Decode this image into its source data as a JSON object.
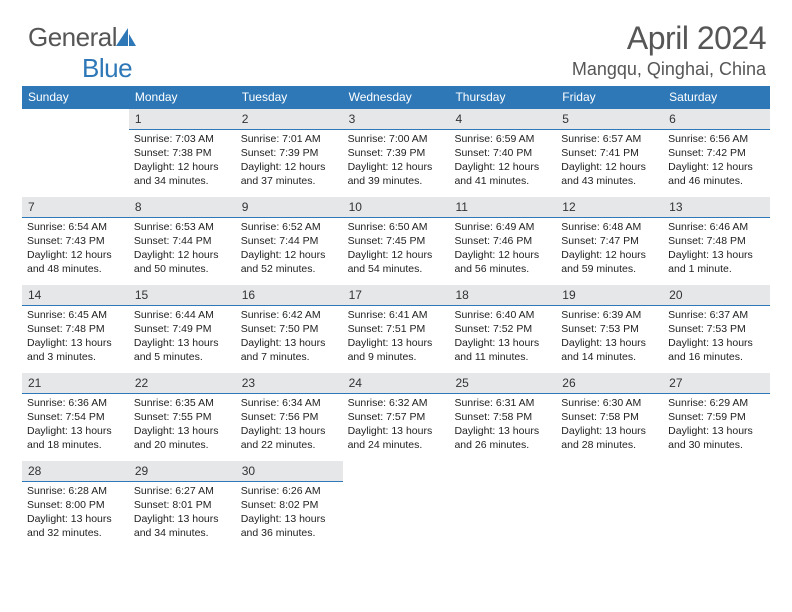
{
  "logo": {
    "text1": "General",
    "text2": "Blue"
  },
  "title": "April 2024",
  "location": "Mangqu, Qinghai, China",
  "colors": {
    "brand_blue": "#2e78b7",
    "header_gray": "#e5e7e9",
    "text_gray": "#565656",
    "body_text": "#222222",
    "background": "#ffffff"
  },
  "daynames": [
    "Sunday",
    "Monday",
    "Tuesday",
    "Wednesday",
    "Thursday",
    "Friday",
    "Saturday"
  ],
  "weeks": [
    [
      null,
      {
        "n": "1",
        "sr": "Sunrise: 7:03 AM",
        "ss": "Sunset: 7:38 PM",
        "d1": "Daylight: 12 hours",
        "d2": "and 34 minutes."
      },
      {
        "n": "2",
        "sr": "Sunrise: 7:01 AM",
        "ss": "Sunset: 7:39 PM",
        "d1": "Daylight: 12 hours",
        "d2": "and 37 minutes."
      },
      {
        "n": "3",
        "sr": "Sunrise: 7:00 AM",
        "ss": "Sunset: 7:39 PM",
        "d1": "Daylight: 12 hours",
        "d2": "and 39 minutes."
      },
      {
        "n": "4",
        "sr": "Sunrise: 6:59 AM",
        "ss": "Sunset: 7:40 PM",
        "d1": "Daylight: 12 hours",
        "d2": "and 41 minutes."
      },
      {
        "n": "5",
        "sr": "Sunrise: 6:57 AM",
        "ss": "Sunset: 7:41 PM",
        "d1": "Daylight: 12 hours",
        "d2": "and 43 minutes."
      },
      {
        "n": "6",
        "sr": "Sunrise: 6:56 AM",
        "ss": "Sunset: 7:42 PM",
        "d1": "Daylight: 12 hours",
        "d2": "and 46 minutes."
      }
    ],
    [
      {
        "n": "7",
        "sr": "Sunrise: 6:54 AM",
        "ss": "Sunset: 7:43 PM",
        "d1": "Daylight: 12 hours",
        "d2": "and 48 minutes."
      },
      {
        "n": "8",
        "sr": "Sunrise: 6:53 AM",
        "ss": "Sunset: 7:44 PM",
        "d1": "Daylight: 12 hours",
        "d2": "and 50 minutes."
      },
      {
        "n": "9",
        "sr": "Sunrise: 6:52 AM",
        "ss": "Sunset: 7:44 PM",
        "d1": "Daylight: 12 hours",
        "d2": "and 52 minutes."
      },
      {
        "n": "10",
        "sr": "Sunrise: 6:50 AM",
        "ss": "Sunset: 7:45 PM",
        "d1": "Daylight: 12 hours",
        "d2": "and 54 minutes."
      },
      {
        "n": "11",
        "sr": "Sunrise: 6:49 AM",
        "ss": "Sunset: 7:46 PM",
        "d1": "Daylight: 12 hours",
        "d2": "and 56 minutes."
      },
      {
        "n": "12",
        "sr": "Sunrise: 6:48 AM",
        "ss": "Sunset: 7:47 PM",
        "d1": "Daylight: 12 hours",
        "d2": "and 59 minutes."
      },
      {
        "n": "13",
        "sr": "Sunrise: 6:46 AM",
        "ss": "Sunset: 7:48 PM",
        "d1": "Daylight: 13 hours",
        "d2": "and 1 minute."
      }
    ],
    [
      {
        "n": "14",
        "sr": "Sunrise: 6:45 AM",
        "ss": "Sunset: 7:48 PM",
        "d1": "Daylight: 13 hours",
        "d2": "and 3 minutes."
      },
      {
        "n": "15",
        "sr": "Sunrise: 6:44 AM",
        "ss": "Sunset: 7:49 PM",
        "d1": "Daylight: 13 hours",
        "d2": "and 5 minutes."
      },
      {
        "n": "16",
        "sr": "Sunrise: 6:42 AM",
        "ss": "Sunset: 7:50 PM",
        "d1": "Daylight: 13 hours",
        "d2": "and 7 minutes."
      },
      {
        "n": "17",
        "sr": "Sunrise: 6:41 AM",
        "ss": "Sunset: 7:51 PM",
        "d1": "Daylight: 13 hours",
        "d2": "and 9 minutes."
      },
      {
        "n": "18",
        "sr": "Sunrise: 6:40 AM",
        "ss": "Sunset: 7:52 PM",
        "d1": "Daylight: 13 hours",
        "d2": "and 11 minutes."
      },
      {
        "n": "19",
        "sr": "Sunrise: 6:39 AM",
        "ss": "Sunset: 7:53 PM",
        "d1": "Daylight: 13 hours",
        "d2": "and 14 minutes."
      },
      {
        "n": "20",
        "sr": "Sunrise: 6:37 AM",
        "ss": "Sunset: 7:53 PM",
        "d1": "Daylight: 13 hours",
        "d2": "and 16 minutes."
      }
    ],
    [
      {
        "n": "21",
        "sr": "Sunrise: 6:36 AM",
        "ss": "Sunset: 7:54 PM",
        "d1": "Daylight: 13 hours",
        "d2": "and 18 minutes."
      },
      {
        "n": "22",
        "sr": "Sunrise: 6:35 AM",
        "ss": "Sunset: 7:55 PM",
        "d1": "Daylight: 13 hours",
        "d2": "and 20 minutes."
      },
      {
        "n": "23",
        "sr": "Sunrise: 6:34 AM",
        "ss": "Sunset: 7:56 PM",
        "d1": "Daylight: 13 hours",
        "d2": "and 22 minutes."
      },
      {
        "n": "24",
        "sr": "Sunrise: 6:32 AM",
        "ss": "Sunset: 7:57 PM",
        "d1": "Daylight: 13 hours",
        "d2": "and 24 minutes."
      },
      {
        "n": "25",
        "sr": "Sunrise: 6:31 AM",
        "ss": "Sunset: 7:58 PM",
        "d1": "Daylight: 13 hours",
        "d2": "and 26 minutes."
      },
      {
        "n": "26",
        "sr": "Sunrise: 6:30 AM",
        "ss": "Sunset: 7:58 PM",
        "d1": "Daylight: 13 hours",
        "d2": "and 28 minutes."
      },
      {
        "n": "27",
        "sr": "Sunrise: 6:29 AM",
        "ss": "Sunset: 7:59 PM",
        "d1": "Daylight: 13 hours",
        "d2": "and 30 minutes."
      }
    ],
    [
      {
        "n": "28",
        "sr": "Sunrise: 6:28 AM",
        "ss": "Sunset: 8:00 PM",
        "d1": "Daylight: 13 hours",
        "d2": "and 32 minutes."
      },
      {
        "n": "29",
        "sr": "Sunrise: 6:27 AM",
        "ss": "Sunset: 8:01 PM",
        "d1": "Daylight: 13 hours",
        "d2": "and 34 minutes."
      },
      {
        "n": "30",
        "sr": "Sunrise: 6:26 AM",
        "ss": "Sunset: 8:02 PM",
        "d1": "Daylight: 13 hours",
        "d2": "and 36 minutes."
      },
      null,
      null,
      null,
      null
    ]
  ]
}
